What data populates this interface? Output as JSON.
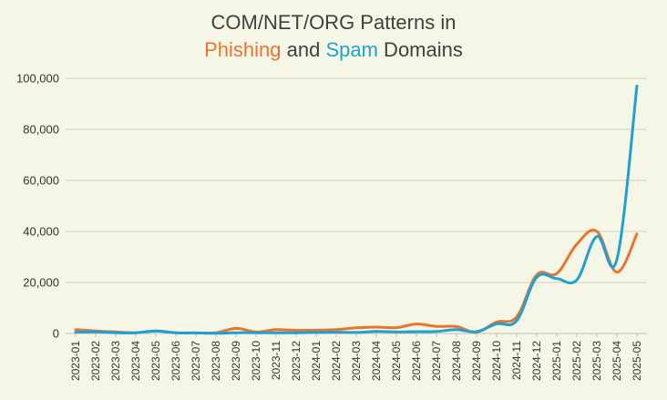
{
  "title": {
    "line1": "COM/NET/ORG Patterns in",
    "word_phishing": "Phishing",
    "word_and": " and ",
    "word_spam": "Spam",
    "word_domains": " Domains"
  },
  "colors": {
    "phishing": "#e8742e",
    "spam": "#1ea1d2",
    "background": "#f6f6e6"
  },
  "chart_data": {
    "type": "line",
    "title": "COM/NET/ORG Patterns in Phishing and Spam Domains",
    "xlabel": "",
    "ylabel": "",
    "ylim": [
      0,
      100000
    ],
    "yticks": [
      0,
      20000,
      40000,
      60000,
      80000,
      100000
    ],
    "ytick_labels": [
      "0",
      "20,000",
      "40,000",
      "60,000",
      "80,000",
      "100,000"
    ],
    "grid": true,
    "legend": "none (series identified by coloured words in the title)",
    "categories": [
      "2023-01",
      "2023-02",
      "2023-03",
      "2023-04",
      "2023-05",
      "2023-06",
      "2023-07",
      "2023-08",
      "2023-09",
      "2023-10",
      "2023-11",
      "2023-12",
      "2024-01",
      "2024-02",
      "2024-03",
      "2024-04",
      "2024-05",
      "2024-06",
      "2024-07",
      "2024-08",
      "2024-09",
      "2024-10",
      "2024-11",
      "2024-12",
      "2025-01",
      "2025-02",
      "2025-03",
      "2025-04",
      "2025-05"
    ],
    "series": [
      {
        "name": "Phishing",
        "color": "#e8742e",
        "values": [
          1500,
          1000,
          600,
          300,
          1000,
          300,
          200,
          300,
          2000,
          600,
          1500,
          1200,
          1300,
          1500,
          2200,
          2500,
          2300,
          3700,
          2800,
          2700,
          500,
          4500,
          6500,
          23000,
          23500,
          35000,
          40000,
          24000,
          39000
        ]
      },
      {
        "name": "Spam",
        "color": "#1ea1d2",
        "values": [
          500,
          600,
          300,
          300,
          1000,
          300,
          200,
          100,
          300,
          300,
          300,
          300,
          400,
          500,
          400,
          800,
          600,
          700,
          800,
          1500,
          700,
          3800,
          5000,
          22000,
          21500,
          21000,
          38000,
          29000,
          97000
        ]
      }
    ]
  }
}
